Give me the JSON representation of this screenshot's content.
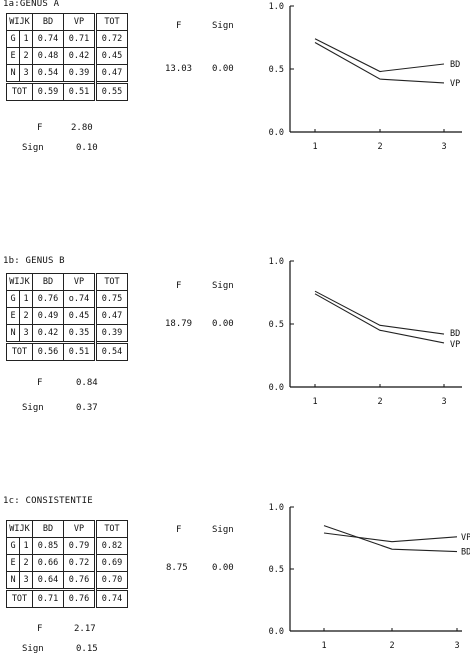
{
  "panels": [
    {
      "title": "1a:GENUS A",
      "headers": {
        "wijk": "WIJK",
        "bd": "BD",
        "vp": "VP",
        "tot": "TOT",
        "f": "F",
        "sign": "Sign"
      },
      "rows": [
        {
          "group": "G",
          "num": "1",
          "bd": "0.74",
          "vp": "0.71",
          "tot": "0.72"
        },
        {
          "group": "E",
          "num": "2",
          "bd": "0.48",
          "vp": "0.42",
          "tot": "0.45"
        },
        {
          "group": "N",
          "num": "3",
          "bd": "0.54",
          "vp": "0.39",
          "tot": "0.47"
        }
      ],
      "total": {
        "label": "TOT",
        "bd": "0.59",
        "vp": "0.51",
        "tot": "0.55"
      },
      "row_f": "13.03",
      "row_sign": "0.00",
      "col_f_label": "F",
      "col_f": "2.80",
      "col_sign_label": "Sign",
      "col_sign": "0.10"
    },
    {
      "title": "1b: GENUS B",
      "headers": {
        "wijk": "WIJK",
        "bd": "BD",
        "vp": "VP",
        "tot": "TOT",
        "f": "F",
        "sign": "Sign"
      },
      "rows": [
        {
          "group": "G",
          "num": "1",
          "bd": "0.76",
          "vp": "o.74",
          "tot": "0.75"
        },
        {
          "group": "E",
          "num": "2",
          "bd": "0.49",
          "vp": "0.45",
          "tot": "0.47"
        },
        {
          "group": "N",
          "num": "3",
          "bd": "0.42",
          "vp": "0.35",
          "tot": "0.39"
        }
      ],
      "total": {
        "label": "TOT",
        "bd": "0.56",
        "vp": "0.51",
        "tot": "0.54"
      },
      "row_f": "18.79",
      "row_sign": "0.00",
      "col_f_label": "F",
      "col_f": "0.84",
      "col_sign_label": "Sign",
      "col_sign": "0.37"
    },
    {
      "title": "1c: CONSISTENTIE",
      "headers": {
        "wijk": "WIJK",
        "bd": "BD",
        "vp": "VP",
        "tot": "TOT",
        "f": "F",
        "sign": "Sign"
      },
      "rows": [
        {
          "group": "G",
          "num": "1",
          "bd": "0.85",
          "vp": "0.79",
          "tot": "0.82"
        },
        {
          "group": "E",
          "num": "2",
          "bd": "0.66",
          "vp": "0.72",
          "tot": "0.69"
        },
        {
          "group": "N",
          "num": "3",
          "bd": "0.64",
          "vp": "0.76",
          "tot": "0.70"
        }
      ],
      "total": {
        "label": "TOT",
        "bd": "0.71",
        "vp": "0.76",
        "tot": "0.74"
      },
      "row_f": "8.75",
      "row_sign": "0.00",
      "col_f_label": "F",
      "col_f": "2.17",
      "col_sign_label": "Sign",
      "col_sign": "0.15"
    }
  ],
  "chart_data": [
    {
      "type": "line",
      "x": [
        1,
        2,
        3
      ],
      "xticks": [
        "1",
        "2",
        "3"
      ],
      "yticks": [
        "0.0",
        "0.5",
        "1.0"
      ],
      "ylim": [
        0,
        1
      ],
      "series": [
        {
          "name": "BD",
          "values": [
            0.74,
            0.48,
            0.54
          ]
        },
        {
          "name": "VP",
          "values": [
            0.71,
            0.42,
            0.39
          ]
        }
      ]
    },
    {
      "type": "line",
      "x": [
        1,
        2,
        3
      ],
      "xticks": [
        "1",
        "2",
        "3"
      ],
      "yticks": [
        "0.0",
        "0.5",
        "1.0"
      ],
      "ylim": [
        0,
        1
      ],
      "series": [
        {
          "name": "BD",
          "values": [
            0.76,
            0.49,
            0.42
          ]
        },
        {
          "name": "VP",
          "values": [
            0.74,
            0.45,
            0.35
          ]
        }
      ]
    },
    {
      "type": "line",
      "x": [
        1,
        2,
        3
      ],
      "xticks": [
        "1",
        "2",
        "3"
      ],
      "yticks": [
        "0.0",
        "0.5",
        "1.0"
      ],
      "ylim": [
        0,
        1
      ],
      "series": [
        {
          "name": "VP",
          "values": [
            0.79,
            0.72,
            0.76
          ]
        },
        {
          "name": "BD",
          "values": [
            0.85,
            0.66,
            0.64
          ]
        }
      ]
    }
  ]
}
